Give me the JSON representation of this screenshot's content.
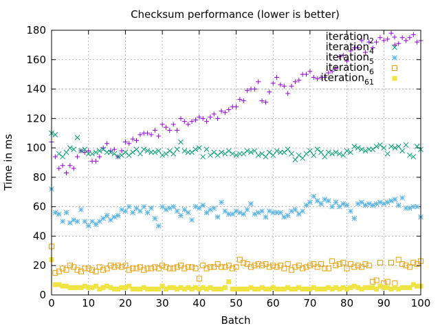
{
  "chart_data": {
    "type": "scatter",
    "title": "Checksum performance (lower is better)",
    "xlabel": "Batch",
    "ylabel": "Time in ms",
    "xlim": [
      0,
      100
    ],
    "ylim": [
      0,
      180
    ],
    "xticks": [
      "0",
      "10",
      "20",
      "30",
      "40",
      "50",
      "60",
      "70",
      "80",
      "90",
      "100"
    ],
    "yticks": [
      "0",
      "20",
      "40",
      "60",
      "80",
      "100",
      "120",
      "140",
      "160",
      "180"
    ],
    "grid": true,
    "legend_position": "top-right",
    "series": [
      {
        "name": "iteration2",
        "label_base": "iteration",
        "label_sub": "2",
        "marker": "plus",
        "color": "#9400d3",
        "values": [
          104,
          94,
          86,
          88,
          83,
          88,
          86,
          94,
          98,
          97,
          98,
          91,
          91,
          94,
          100,
          103,
          98,
          99,
          94,
          98,
          104,
          103,
          106,
          105,
          109,
          110,
          110,
          109,
          112,
          108,
          116,
          114,
          112,
          116,
          112,
          120,
          118,
          116,
          118,
          119,
          121,
          120,
          118,
          121,
          123,
          120,
          125,
          124,
          126,
          128,
          128,
          133,
          132,
          139,
          140,
          140,
          145,
          132,
          131,
          138,
          144,
          148,
          143,
          142,
          137,
          142,
          145,
          146,
          150,
          150,
          152,
          148,
          147,
          148,
          148,
          151,
          152,
          154,
          162,
          163,
          159,
          166,
          168,
          168,
          173,
          165,
          172,
          168,
          172,
          175,
          173,
          174,
          178,
          170,
          171,
          175,
          173,
          175,
          177,
          172,
          173
        ]
      },
      {
        "name": "iteration4",
        "label_base": "iteration",
        "label_sub": "4",
        "marker": "x",
        "color": "#009e73",
        "values": [
          110,
          109,
          96,
          94,
          97,
          100,
          99,
          107,
          98,
          99,
          96,
          96,
          97,
          98,
          99,
          97,
          97,
          96,
          94,
          95,
          97,
          95,
          97,
          99,
          96,
          99,
          98,
          97,
          97,
          98,
          95,
          96,
          98,
          96,
          99,
          104,
          98,
          97,
          97,
          99,
          100,
          94,
          99,
          95,
          97,
          95,
          97,
          96,
          98,
          96,
          95,
          96,
          96,
          98,
          97,
          98,
          95,
          96,
          94,
          97,
          95,
          98,
          97,
          97,
          99,
          96,
          92,
          95,
          93,
          96,
          98,
          95,
          99,
          97,
          94,
          97,
          96,
          97,
          96,
          95,
          98,
          97,
          101,
          100,
          99,
          98,
          99,
          99,
          101,
          102,
          100,
          96,
          101,
          100,
          101,
          98,
          102,
          95,
          94,
          101,
          99
        ]
      },
      {
        "name": "iteration5",
        "label_base": "iteration",
        "label_sub": "5",
        "marker": "star",
        "color": "#56b4e9",
        "values": [
          72,
          56,
          55,
          50,
          56,
          49,
          51,
          50,
          58,
          50,
          47,
          50,
          48,
          50,
          52,
          54,
          51,
          53,
          54,
          58,
          57,
          60,
          56,
          59,
          57,
          60,
          56,
          59,
          52,
          47,
          60,
          58,
          59,
          60,
          57,
          54,
          58,
          56,
          51,
          60,
          59,
          61,
          56,
          58,
          59,
          53,
          63,
          57,
          55,
          55,
          57,
          56,
          55,
          58,
          62,
          55,
          56,
          57,
          53,
          57,
          56,
          56,
          56,
          53,
          54,
          57,
          58,
          55,
          57,
          61,
          63,
          67,
          64,
          62,
          65,
          64,
          60,
          63,
          60,
          62,
          61,
          57,
          52,
          62,
          63,
          61,
          62,
          61,
          62,
          63,
          62,
          63,
          64,
          65,
          61,
          66,
          59,
          59,
          60,
          60,
          53
        ]
      },
      {
        "name": "iteration6",
        "label_base": "iteration",
        "label_sub": "6",
        "marker": "square",
        "color": "#e69f00",
        "values": [
          33,
          15,
          16,
          18,
          17,
          20,
          19,
          17,
          16,
          18,
          18,
          17,
          16,
          19,
          17,
          18,
          20,
          19,
          20,
          19,
          20,
          17,
          18,
          18,
          19,
          17,
          18,
          18,
          19,
          18,
          20,
          19,
          18,
          18,
          19,
          20,
          18,
          19,
          19,
          18,
          11,
          20,
          18,
          19,
          19,
          21,
          19,
          19,
          20,
          18,
          19,
          24,
          22,
          21,
          19,
          20,
          21,
          20,
          21,
          19,
          20,
          19,
          20,
          18,
          21,
          17,
          19,
          20,
          18,
          19,
          20,
          21,
          19,
          21,
          18,
          18,
          23,
          20,
          21,
          22,
          18,
          21,
          19,
          20,
          19,
          21,
          20,
          9,
          10,
          22,
          8,
          9,
          22,
          8,
          24,
          21,
          20,
          19,
          22,
          21,
          23
        ]
      },
      {
        "name": "iteration61",
        "label_base": "iteration",
        "label_sub": "61",
        "marker": "filled-square",
        "color": "#f0e442",
        "values": [
          24,
          7,
          7,
          6,
          6,
          5,
          5,
          5,
          5,
          6,
          5,
          5,
          6,
          4,
          5,
          6,
          5,
          4,
          4,
          5,
          5,
          6,
          4,
          4,
          4,
          5,
          4,
          4,
          4,
          4,
          6,
          4,
          5,
          5,
          4,
          5,
          4,
          5,
          4,
          5,
          4,
          5,
          4,
          5,
          4,
          4,
          4,
          5,
          9,
          4,
          4,
          4,
          4,
          4,
          5,
          4,
          4,
          5,
          4,
          4,
          5,
          4,
          4,
          4,
          5,
          4,
          4,
          5,
          4,
          4,
          4,
          5,
          4,
          4,
          4,
          5,
          4,
          5,
          4,
          5,
          4,
          5,
          6,
          5,
          4,
          5,
          5,
          5,
          4,
          6,
          5,
          5,
          4,
          5,
          4,
          5,
          5,
          5,
          7,
          6,
          6
        ]
      }
    ]
  }
}
